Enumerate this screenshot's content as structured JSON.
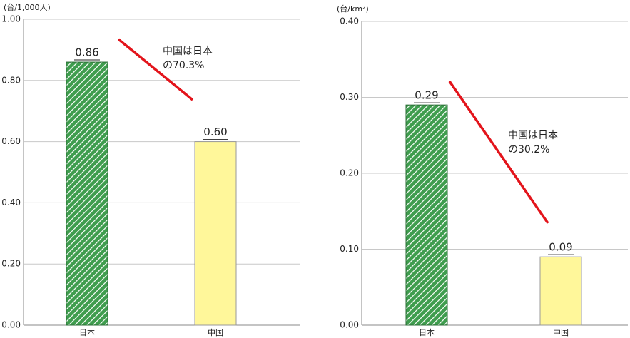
{
  "chart_data": [
    {
      "type": "bar",
      "y_label": "(台/1,000人)",
      "categories": [
        "日本",
        "中国"
      ],
      "values": [
        0.86,
        0.6
      ],
      "value_labels": [
        "0.86",
        "0.60"
      ],
      "colors": [
        "#3f9d4e",
        "#fff79a"
      ],
      "hatch": [
        true,
        false
      ],
      "ylim": [
        0,
        1.0
      ],
      "yticks": [
        {
          "value": 0,
          "label": "0.00"
        },
        {
          "value": 0.2,
          "label": "0.20"
        },
        {
          "value": 0.4,
          "label": "0.40"
        },
        {
          "value": 0.6,
          "label": "0.60"
        },
        {
          "value": 0.8,
          "label": "0.80"
        },
        {
          "value": 1.0,
          "label": "1.00"
        }
      ],
      "grid": true,
      "annotation": [
        "中国は日本",
        "の70.3%"
      ]
    },
    {
      "type": "bar",
      "y_label": "(台/km²)",
      "categories": [
        "日本",
        "中国"
      ],
      "values": [
        0.29,
        0.09
      ],
      "value_labels": [
        "0.29",
        "0.09"
      ],
      "colors": [
        "#3f9d4e",
        "#fff79a"
      ],
      "hatch": [
        true,
        false
      ],
      "ylim": [
        0,
        0.4
      ],
      "yticks": [
        {
          "value": 0,
          "label": "0.00"
        },
        {
          "value": 0.1,
          "label": "0.10"
        },
        {
          "value": 0.2,
          "label": "0.20"
        },
        {
          "value": 0.3,
          "label": "0.30"
        },
        {
          "value": 0.4,
          "label": "0.40"
        }
      ],
      "grid": true,
      "annotation": [
        "中国は日本",
        "の30.2%"
      ]
    }
  ]
}
